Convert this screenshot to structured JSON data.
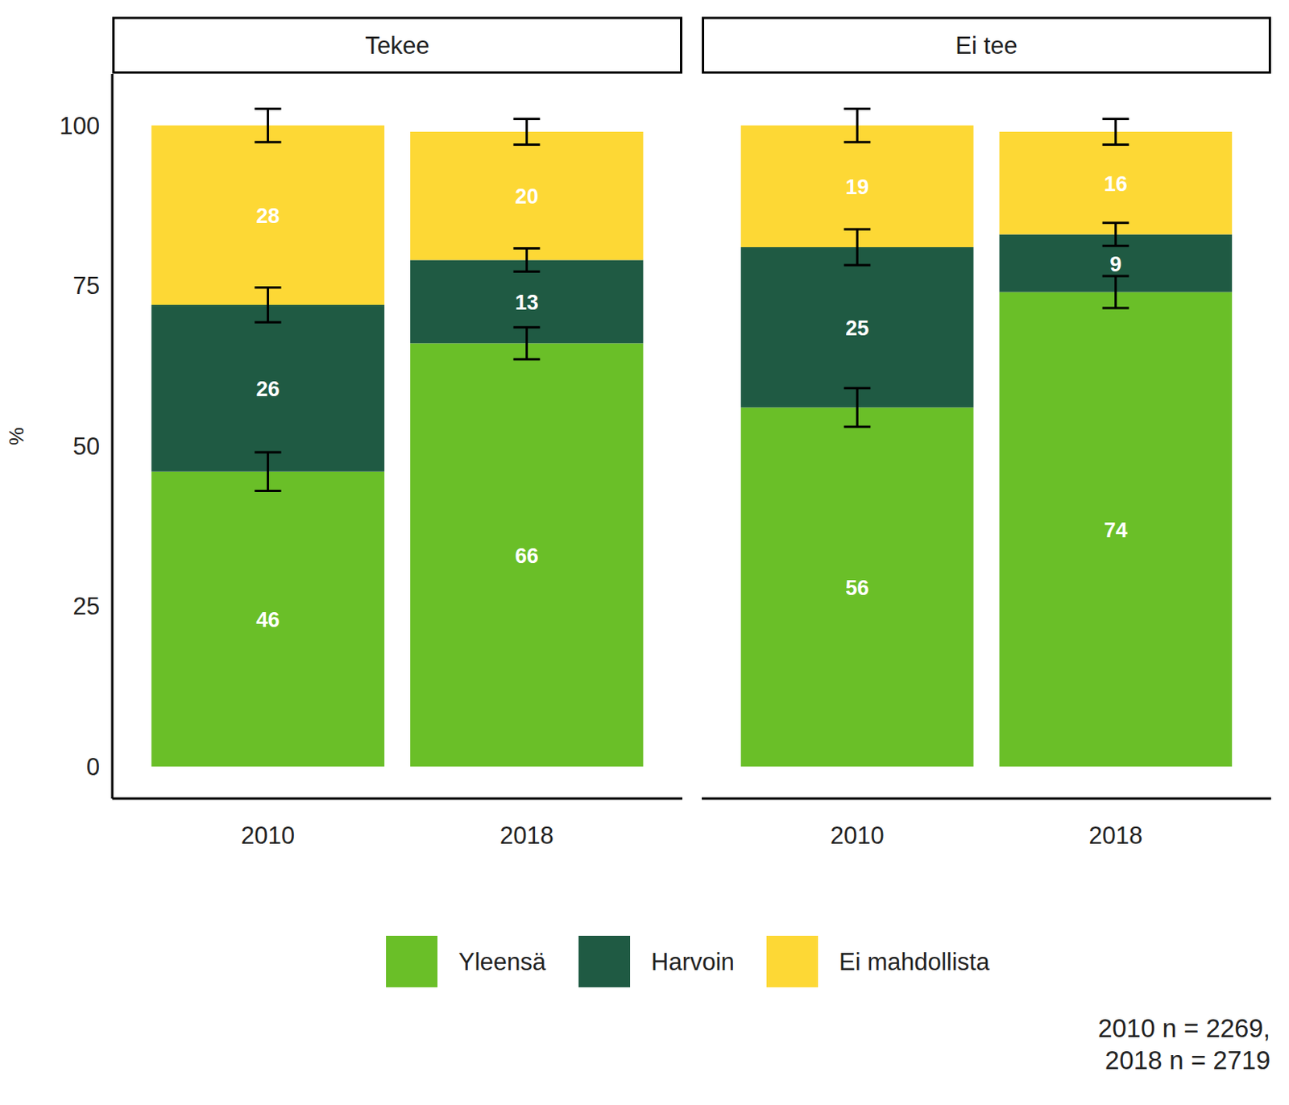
{
  "chart_data": [
    {
      "type": "bar",
      "stacked": true,
      "title": "Tekee",
      "y_label": "%",
      "categories": [
        "2010",
        "2018"
      ],
      "series": [
        {
          "name": "Yleensä",
          "color": "#6abf28",
          "values": [
            46,
            66
          ],
          "errors": [
            3,
            2.5
          ]
        },
        {
          "name": "Harvoin",
          "color": "#1f5a43",
          "values": [
            26,
            13
          ],
          "errors": [
            2.7,
            1.8
          ]
        },
        {
          "name": "Ei mahdollista",
          "color": "#fdd835",
          "values": [
            28,
            20
          ],
          "errors": [
            2.6,
            2
          ]
        }
      ],
      "ylim": [
        -5,
        108
      ],
      "yticks": [
        0,
        25,
        50,
        75,
        100
      ],
      "grid": false,
      "data_labels": true,
      "legend": "bottom"
    },
    {
      "type": "bar",
      "stacked": true,
      "title": "Ei tee",
      "categories": [
        "2010",
        "2018"
      ],
      "series": [
        {
          "name": "Yleensä",
          "color": "#6abf28",
          "values": [
            56,
            74
          ],
          "errors": [
            3,
            2.5
          ]
        },
        {
          "name": "Harvoin",
          "color": "#1f5a43",
          "values": [
            25,
            9
          ],
          "errors": [
            2.8,
            1.8
          ]
        },
        {
          "name": "Ei mahdollista",
          "color": "#fdd835",
          "values": [
            19,
            16
          ],
          "errors": [
            2.6,
            2
          ]
        }
      ],
      "ylim": [
        -5,
        108
      ],
      "yticks": [
        0,
        25,
        50,
        75,
        100
      ],
      "grid": false,
      "data_labels": true,
      "tick_labels": "x"
    }
  ],
  "caption": [
    "2010 n = 2269,",
    "2018 n = 2719"
  ]
}
